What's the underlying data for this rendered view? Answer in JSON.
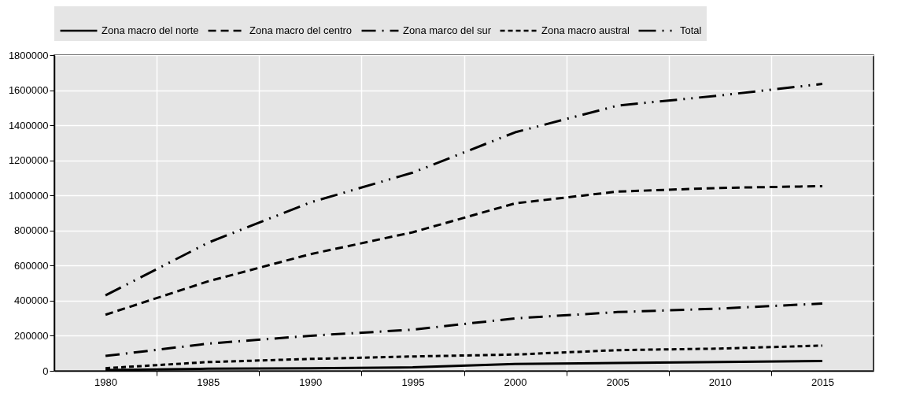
{
  "chart_data": {
    "type": "line",
    "legend": "top",
    "grid": true,
    "xlim": [
      1977.5,
      2017.5
    ],
    "xticks": [
      1980,
      {
        "value": 1982.5,
        "label": null
      },
      1985,
      {
        "value": 1987.5,
        "label": null
      },
      1990,
      {
        "value": 1992.5,
        "label": null
      },
      1995,
      {
        "value": 1997.5,
        "label": null
      },
      2000,
      {
        "value": 2002.5,
        "label": null
      },
      2005,
      {
        "value": 2007.5,
        "label": null
      },
      2010,
      {
        "value": 2012.5,
        "label": null
      },
      2015
    ],
    "ylim": [
      0,
      1800000
    ],
    "yticks": [
      0,
      200000,
      400000,
      600000,
      800000,
      1000000,
      1200000,
      1400000,
      1600000,
      1800000
    ],
    "x": [
      1980,
      1985,
      1990,
      1995,
      2000,
      2005,
      2010,
      2015
    ],
    "series": [
      {
        "name": "Zona macro del norte",
        "color": "#000000",
        "line_style": "solid",
        "values": [
          5000,
          12000,
          15000,
          20000,
          39000,
          45000,
          50000,
          56000
        ]
      },
      {
        "name": "Zona macro del centro",
        "color": "#000000",
        "line_style": "dashed",
        "values": [
          320000,
          510000,
          665000,
          790000,
          955000,
          1022000,
          1043000,
          1053000
        ]
      },
      {
        "name": "Zona marco del sur",
        "color": "#000000",
        "line_style": "dashdot",
        "values": [
          85000,
          155000,
          200000,
          235000,
          299000,
          335000,
          355000,
          384000
        ]
      },
      {
        "name": "Zona macro austral",
        "color": "#000000",
        "line_style": "dotted",
        "values": [
          15000,
          50000,
          68000,
          82000,
          93000,
          118000,
          127000,
          144000
        ]
      },
      {
        "name": "Total",
        "color": "#000000",
        "line_style": "dashdotdot",
        "values": [
          430000,
          730000,
          960000,
          1130000,
          1360000,
          1512000,
          1570000,
          1636000
        ]
      }
    ]
  }
}
